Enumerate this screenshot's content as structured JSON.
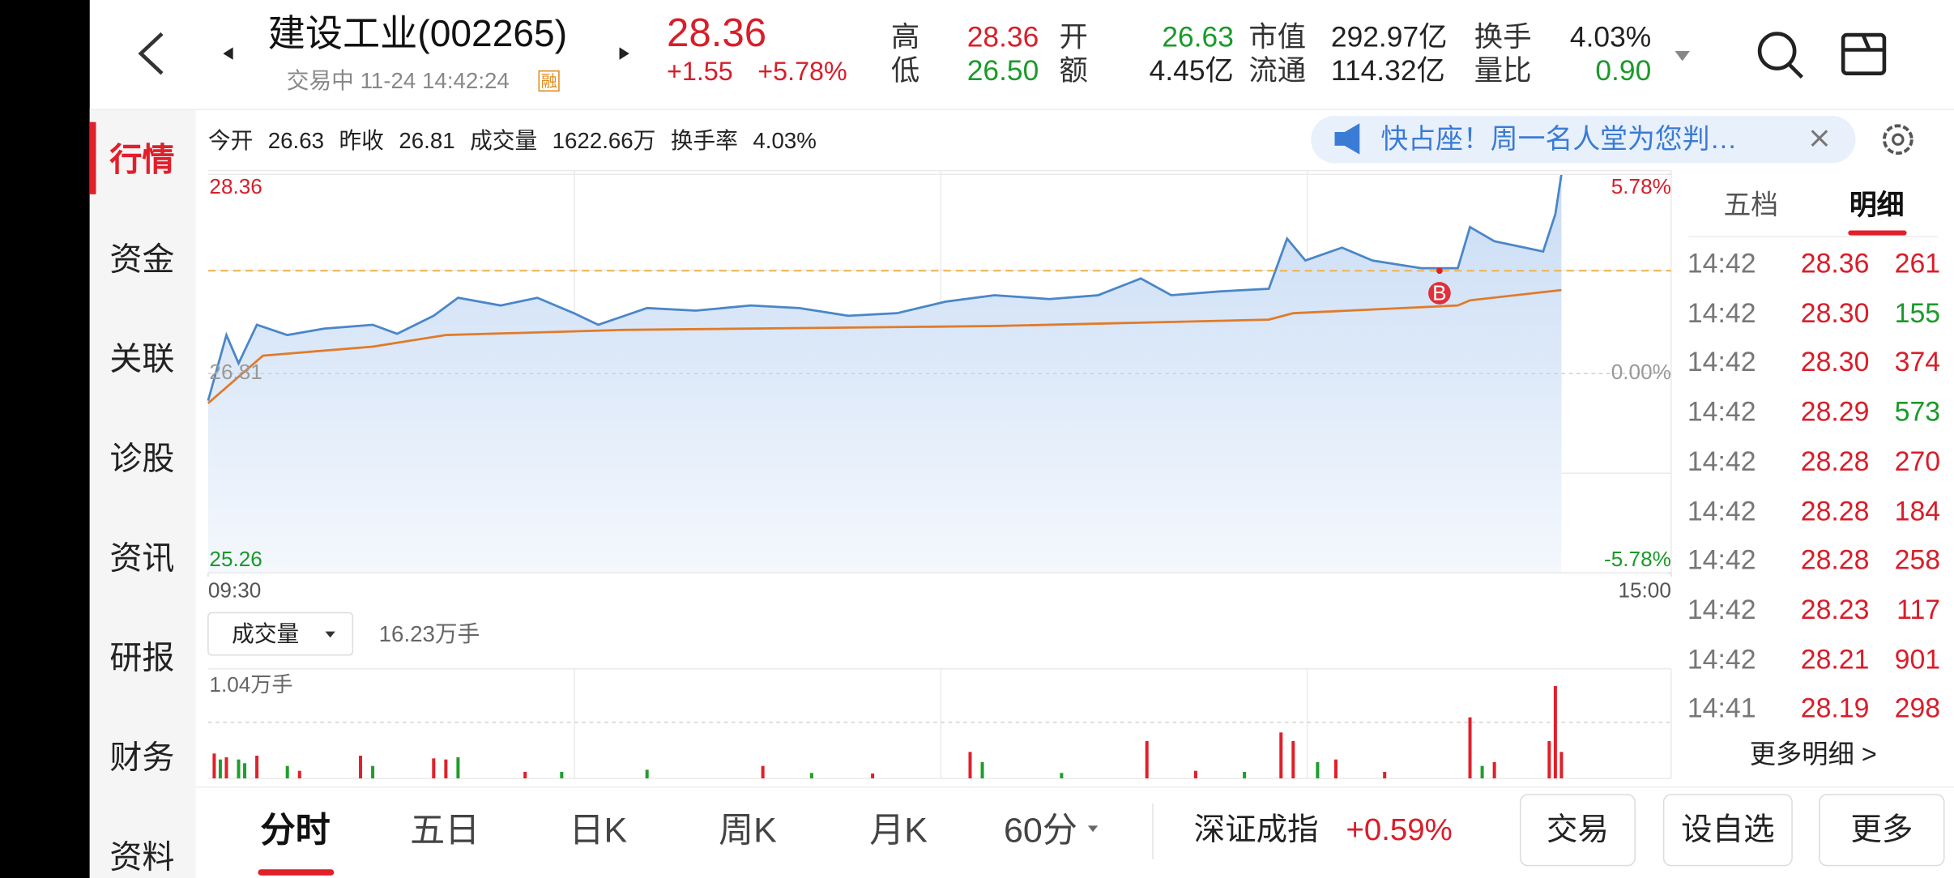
{
  "header": {
    "stock_name": "建设工业(002265)",
    "status": "交易中 11-24 14:42:24",
    "badge": "融",
    "price": "28.36",
    "change": "+1.55",
    "change_pct": "+5.78%",
    "quotes": [
      {
        "label": "高",
        "value": "28.36",
        "color": "#d81e2a"
      },
      {
        "label": "开",
        "value": "26.63",
        "color": "#1a9a2a"
      },
      {
        "label": "市值",
        "value": "292.97亿",
        "color": "#222222"
      },
      {
        "label": "换手",
        "value": "4.03%",
        "color": "#222222"
      },
      {
        "label": "低",
        "value": "26.50",
        "color": "#1a9a2a"
      },
      {
        "label": "额",
        "value": "4.45亿",
        "color": "#222222"
      },
      {
        "label": "流通",
        "value": "114.32亿",
        "color": "#222222"
      },
      {
        "label": "量比",
        "value": "0.90",
        "color": "#1a9a2a"
      }
    ]
  },
  "sidebar": {
    "tabs": [
      "行情",
      "资金",
      "关联",
      "诊股",
      "资讯",
      "研报",
      "财务",
      "资料"
    ],
    "active": 0
  },
  "info_bar": [
    {
      "label": "今开",
      "value": "26.63"
    },
    {
      "label": "昨收",
      "value": "26.81"
    },
    {
      "label": "成交量",
      "value": "1622.66万"
    },
    {
      "label": "换手率",
      "value": "4.03%"
    }
  ],
  "banner": "快占座！周一名人堂为您判…",
  "volume_selector": {
    "label": "成交量",
    "total": "16.23万手"
  },
  "chart_data": [
    {
      "type": "line",
      "xlim": [
        0,
        240
      ],
      "xticks": [
        {
          "value": 0,
          "label": "09:30"
        },
        {
          "value": 240,
          "label": "15:00"
        }
      ],
      "ylim": [
        25.26,
        28.36
      ],
      "yticks": [
        28.36,
        26.81,
        25.26
      ],
      "y2lim": [
        -5.78,
        5.78
      ],
      "y2ticks": [
        {
          "value": 5.78,
          "label": "5.78%"
        },
        {
          "value": 0,
          "label": "0.00%"
        },
        {
          "value": -5.78,
          "label": "-5.78%"
        }
      ],
      "series": [
        {
          "color": "#4a86c8",
          "area": true,
          "x": [
            0,
            3,
            5,
            8,
            13,
            19,
            27,
            31,
            37,
            41,
            48,
            54,
            60,
            64,
            72,
            80,
            89,
            97,
            105,
            113,
            121,
            129,
            138,
            146,
            153,
            158,
            166,
            174,
            177,
            180,
            186,
            191,
            199,
            205,
            207,
            211,
            219,
            221,
            222
          ],
          "values": [
            26.6,
            27.11,
            26.89,
            27.19,
            27.11,
            27.16,
            27.19,
            27.12,
            27.26,
            27.4,
            27.34,
            27.4,
            27.28,
            27.19,
            27.32,
            27.3,
            27.34,
            27.32,
            27.26,
            27.28,
            27.37,
            27.42,
            27.39,
            27.42,
            27.55,
            27.42,
            27.45,
            27.47,
            27.86,
            27.69,
            27.79,
            27.69,
            27.63,
            27.63,
            27.95,
            27.84,
            27.76,
            28.05,
            28.36
          ]
        },
        {
          "color": "#e07b2a",
          "x": [
            0,
            9,
            27,
            39,
            68,
            129,
            174,
            178,
            205,
            207,
            222
          ],
          "values": [
            26.58,
            26.95,
            27.02,
            27.11,
            27.15,
            27.18,
            27.23,
            27.28,
            27.34,
            27.38,
            27.46
          ]
        }
      ],
      "reference_line": 27.61,
      "marker": {
        "label": "B",
        "x": 202,
        "value": 27.61
      }
    },
    {
      "type": "bar",
      "xlim": [
        0,
        240
      ],
      "ylim": [
        0,
        2.03
      ],
      "yticks": [
        {
          "value": 1.04,
          "label": "1.04万手"
        }
      ],
      "series": [
        {
          "color": "#e0202a",
          "x": [
            1,
            3,
            8,
            15,
            25,
            37,
            39,
            52,
            91,
            109,
            125,
            154,
            162,
            176,
            178,
            185,
            193,
            207,
            211,
            220,
            221,
            222
          ],
          "values": [
            0.46,
            0.39,
            0.42,
            0.14,
            0.42,
            0.37,
            0.35,
            0.12,
            0.23,
            0.09,
            0.49,
            0.69,
            0.14,
            0.85,
            0.69,
            0.35,
            0.12,
            1.13,
            0.3,
            0.69,
            1.71,
            0.49
          ]
        },
        {
          "color": "#1f9e2c",
          "x": [
            2,
            5,
            6,
            13,
            27,
            41,
            58,
            72,
            99,
            127,
            140,
            170,
            182,
            209
          ],
          "values": [
            0.35,
            0.35,
            0.28,
            0.23,
            0.23,
            0.39,
            0.12,
            0.16,
            0.1,
            0.3,
            0.1,
            0.12,
            0.3,
            0.23
          ]
        }
      ]
    }
  ],
  "trade_detail": {
    "tabs": [
      "五档",
      "明细"
    ],
    "active": 1,
    "rows": [
      {
        "time": "14:42",
        "price": "28.36",
        "volume": "261",
        "color": "#d81e2a"
      },
      {
        "time": "14:42",
        "price": "28.30",
        "volume": "155",
        "color": "#1a9a2a"
      },
      {
        "time": "14:42",
        "price": "28.30",
        "volume": "374",
        "color": "#d81e2a"
      },
      {
        "time": "14:42",
        "price": "28.29",
        "volume": "573",
        "color": "#1a9a2a"
      },
      {
        "time": "14:42",
        "price": "28.28",
        "volume": "270",
        "color": "#d81e2a"
      },
      {
        "time": "14:42",
        "price": "28.28",
        "volume": "184",
        "color": "#d81e2a"
      },
      {
        "time": "14:42",
        "price": "28.28",
        "volume": "258",
        "color": "#d81e2a"
      },
      {
        "time": "14:42",
        "price": "28.23",
        "volume": "117",
        "color": "#d81e2a"
      },
      {
        "time": "14:42",
        "price": "28.21",
        "volume": "901",
        "color": "#d81e2a"
      },
      {
        "time": "14:41",
        "price": "28.19",
        "volume": "298",
        "color": "#d81e2a"
      }
    ],
    "more": "更多明细 >"
  },
  "bottom_bar": {
    "tabs": [
      "分时",
      "五日",
      "日K",
      "周K",
      "月K",
      "60分"
    ],
    "active": 0,
    "index_name": "深证成指",
    "index_change": "+0.59%",
    "buttons": [
      "交易",
      "设自选",
      "更多"
    ]
  }
}
